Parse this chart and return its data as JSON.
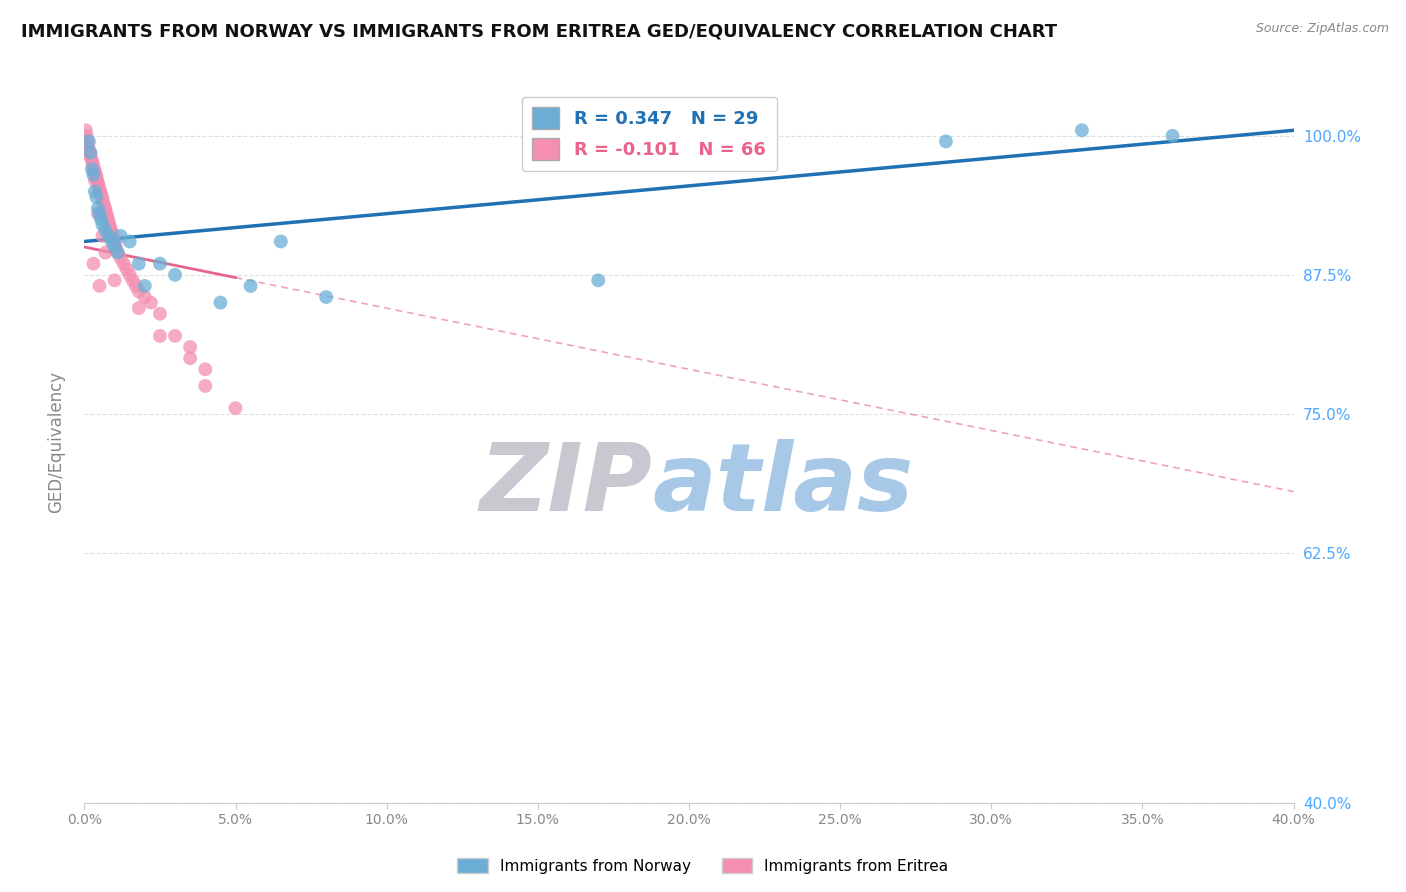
{
  "title": "IMMIGRANTS FROM NORWAY VS IMMIGRANTS FROM ERITREA GED/EQUIVALENCY CORRELATION CHART",
  "source": "Source: ZipAtlas.com",
  "ylabel": "GED/Equivalency",
  "yticks": [
    40.0,
    62.5,
    75.0,
    87.5,
    100.0
  ],
  "xlim": [
    0.0,
    40.0
  ],
  "ylim": [
    40.0,
    105.0
  ],
  "norway_label": "Immigrants from Norway",
  "eritrea_label": "Immigrants from Eritrea",
  "norway_R": 0.347,
  "norway_N": 29,
  "eritrea_R": -0.101,
  "eritrea_N": 66,
  "norway_dot_color": "#6aaed6",
  "eritrea_dot_color": "#f48fb1",
  "norway_line_color": "#2171b5",
  "eritrea_line_color": "#e8648a",
  "norway_line_y0": 90.5,
  "norway_line_y1": 100.5,
  "eritrea_line_y0": 90.0,
  "eritrea_line_y1": 68.0,
  "eritrea_solid_end_x": 5.0,
  "norway_x": [
    0.15,
    0.2,
    0.25,
    0.3,
    0.35,
    0.4,
    0.45,
    0.5,
    0.55,
    0.6,
    0.7,
    0.8,
    0.9,
    1.0,
    1.1,
    1.2,
    1.5,
    1.8,
    2.0,
    2.5,
    3.0,
    4.5,
    5.5,
    6.5,
    8.0,
    17.0,
    28.5,
    33.0,
    36.0
  ],
  "norway_y": [
    99.5,
    98.5,
    97.0,
    96.5,
    95.0,
    94.5,
    93.5,
    93.0,
    92.5,
    92.0,
    91.5,
    91.0,
    90.5,
    90.0,
    89.5,
    91.0,
    90.5,
    88.5,
    86.5,
    88.5,
    87.5,
    85.0,
    86.5,
    90.5,
    85.5,
    87.0,
    99.5,
    100.5,
    100.0
  ],
  "eritrea_x": [
    0.05,
    0.08,
    0.1,
    0.12,
    0.15,
    0.18,
    0.2,
    0.22,
    0.25,
    0.28,
    0.3,
    0.32,
    0.35,
    0.38,
    0.4,
    0.42,
    0.45,
    0.48,
    0.5,
    0.52,
    0.55,
    0.58,
    0.6,
    0.62,
    0.65,
    0.68,
    0.7,
    0.72,
    0.75,
    0.78,
    0.8,
    0.82,
    0.85,
    0.88,
    0.9,
    0.92,
    0.95,
    0.98,
    1.0,
    1.05,
    1.1,
    1.2,
    1.3,
    1.4,
    1.5,
    1.6,
    1.7,
    1.8,
    2.0,
    2.2,
    2.5,
    3.0,
    3.5,
    4.0,
    5.0,
    0.45,
    0.6,
    0.7,
    1.0,
    1.8,
    2.5,
    4.0,
    0.35,
    3.5,
    0.3,
    0.5
  ],
  "eritrea_y": [
    100.5,
    100.0,
    99.5,
    99.0,
    98.8,
    98.5,
    98.2,
    98.0,
    97.8,
    97.5,
    97.3,
    97.0,
    96.8,
    96.5,
    96.3,
    96.0,
    95.8,
    95.5,
    95.2,
    95.0,
    94.8,
    94.5,
    94.3,
    94.0,
    93.8,
    93.5,
    93.3,
    93.0,
    92.8,
    92.5,
    92.3,
    92.0,
    91.8,
    91.5,
    91.3,
    91.0,
    90.8,
    90.5,
    90.3,
    90.0,
    89.5,
    89.0,
    88.5,
    88.0,
    87.5,
    87.0,
    86.5,
    86.0,
    85.5,
    85.0,
    84.0,
    82.0,
    80.0,
    79.0,
    75.5,
    93.0,
    91.0,
    89.5,
    87.0,
    84.5,
    82.0,
    77.5,
    96.0,
    81.0,
    88.5,
    86.5
  ],
  "background_color": "#ffffff",
  "watermark": "ZIPatlas",
  "watermark_color_zip": "#c8c8d0",
  "watermark_color_atlas": "#a8c8e8",
  "grid_color": "#e0e0e0",
  "right_axis_color": "#4da6ff",
  "xtick_count": 9
}
